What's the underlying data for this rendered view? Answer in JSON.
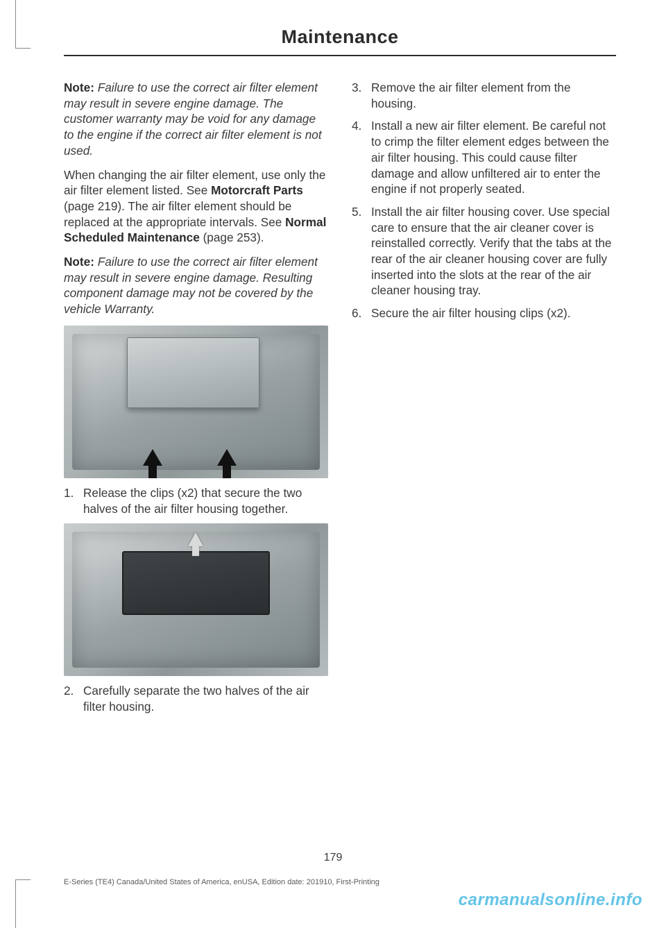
{
  "header": {
    "title": "Maintenance"
  },
  "left": {
    "note1_label": "Note:",
    "note1_text": "Failure to use the correct air filter element may result in severe engine damage.  The customer warranty may be void for any damage to the engine if the correct air filter element is not used.",
    "para1_a": "When changing the air filter element, use only the air filter element listed.  See ",
    "para1_bold1": "Motorcraft Parts",
    "para1_b": " (page 219).  The air filter element should be replaced at the appropriate intervals.  See ",
    "para1_bold2": "Normal Scheduled Maintenance",
    "para1_c": " (page 253).",
    "note2_label": "Note:",
    "note2_text": "Failure to use the correct air filter element may result in severe engine damage.  Resulting component damage may not be covered by the vehicle Warranty.",
    "step1_num": "1.",
    "step1_text": "Release the clips (x2) that secure the two halves of the air filter housing together.",
    "step2_num": "2.",
    "step2_text": "Carefully separate the two halves of the air filter housing."
  },
  "right": {
    "step3_num": "3.",
    "step3_text": "Remove the air filter element from the housing.",
    "step4_num": "4.",
    "step4_text": "Install a new air filter element. Be careful not to crimp the filter element edges between the air filter housing. This could cause filter damage and allow unfiltered air to enter the engine if not properly seated.",
    "step5_num": "5.",
    "step5_text": "Install the air filter housing cover. Use special care to ensure that the air cleaner cover is reinstalled correctly. Verify that the tabs at the rear of the air cleaner housing cover are fully inserted into the slots at the rear of the air cleaner housing tray.",
    "step6_num": "6.",
    "step6_text": "Secure the air filter housing clips (x2)."
  },
  "footer": {
    "page_number": "179",
    "edition": "E-Series (TE4) Canada/United States of America, enUSA, Edition date: 201910, First-Printing",
    "watermark": "carmanualsonline.info"
  }
}
